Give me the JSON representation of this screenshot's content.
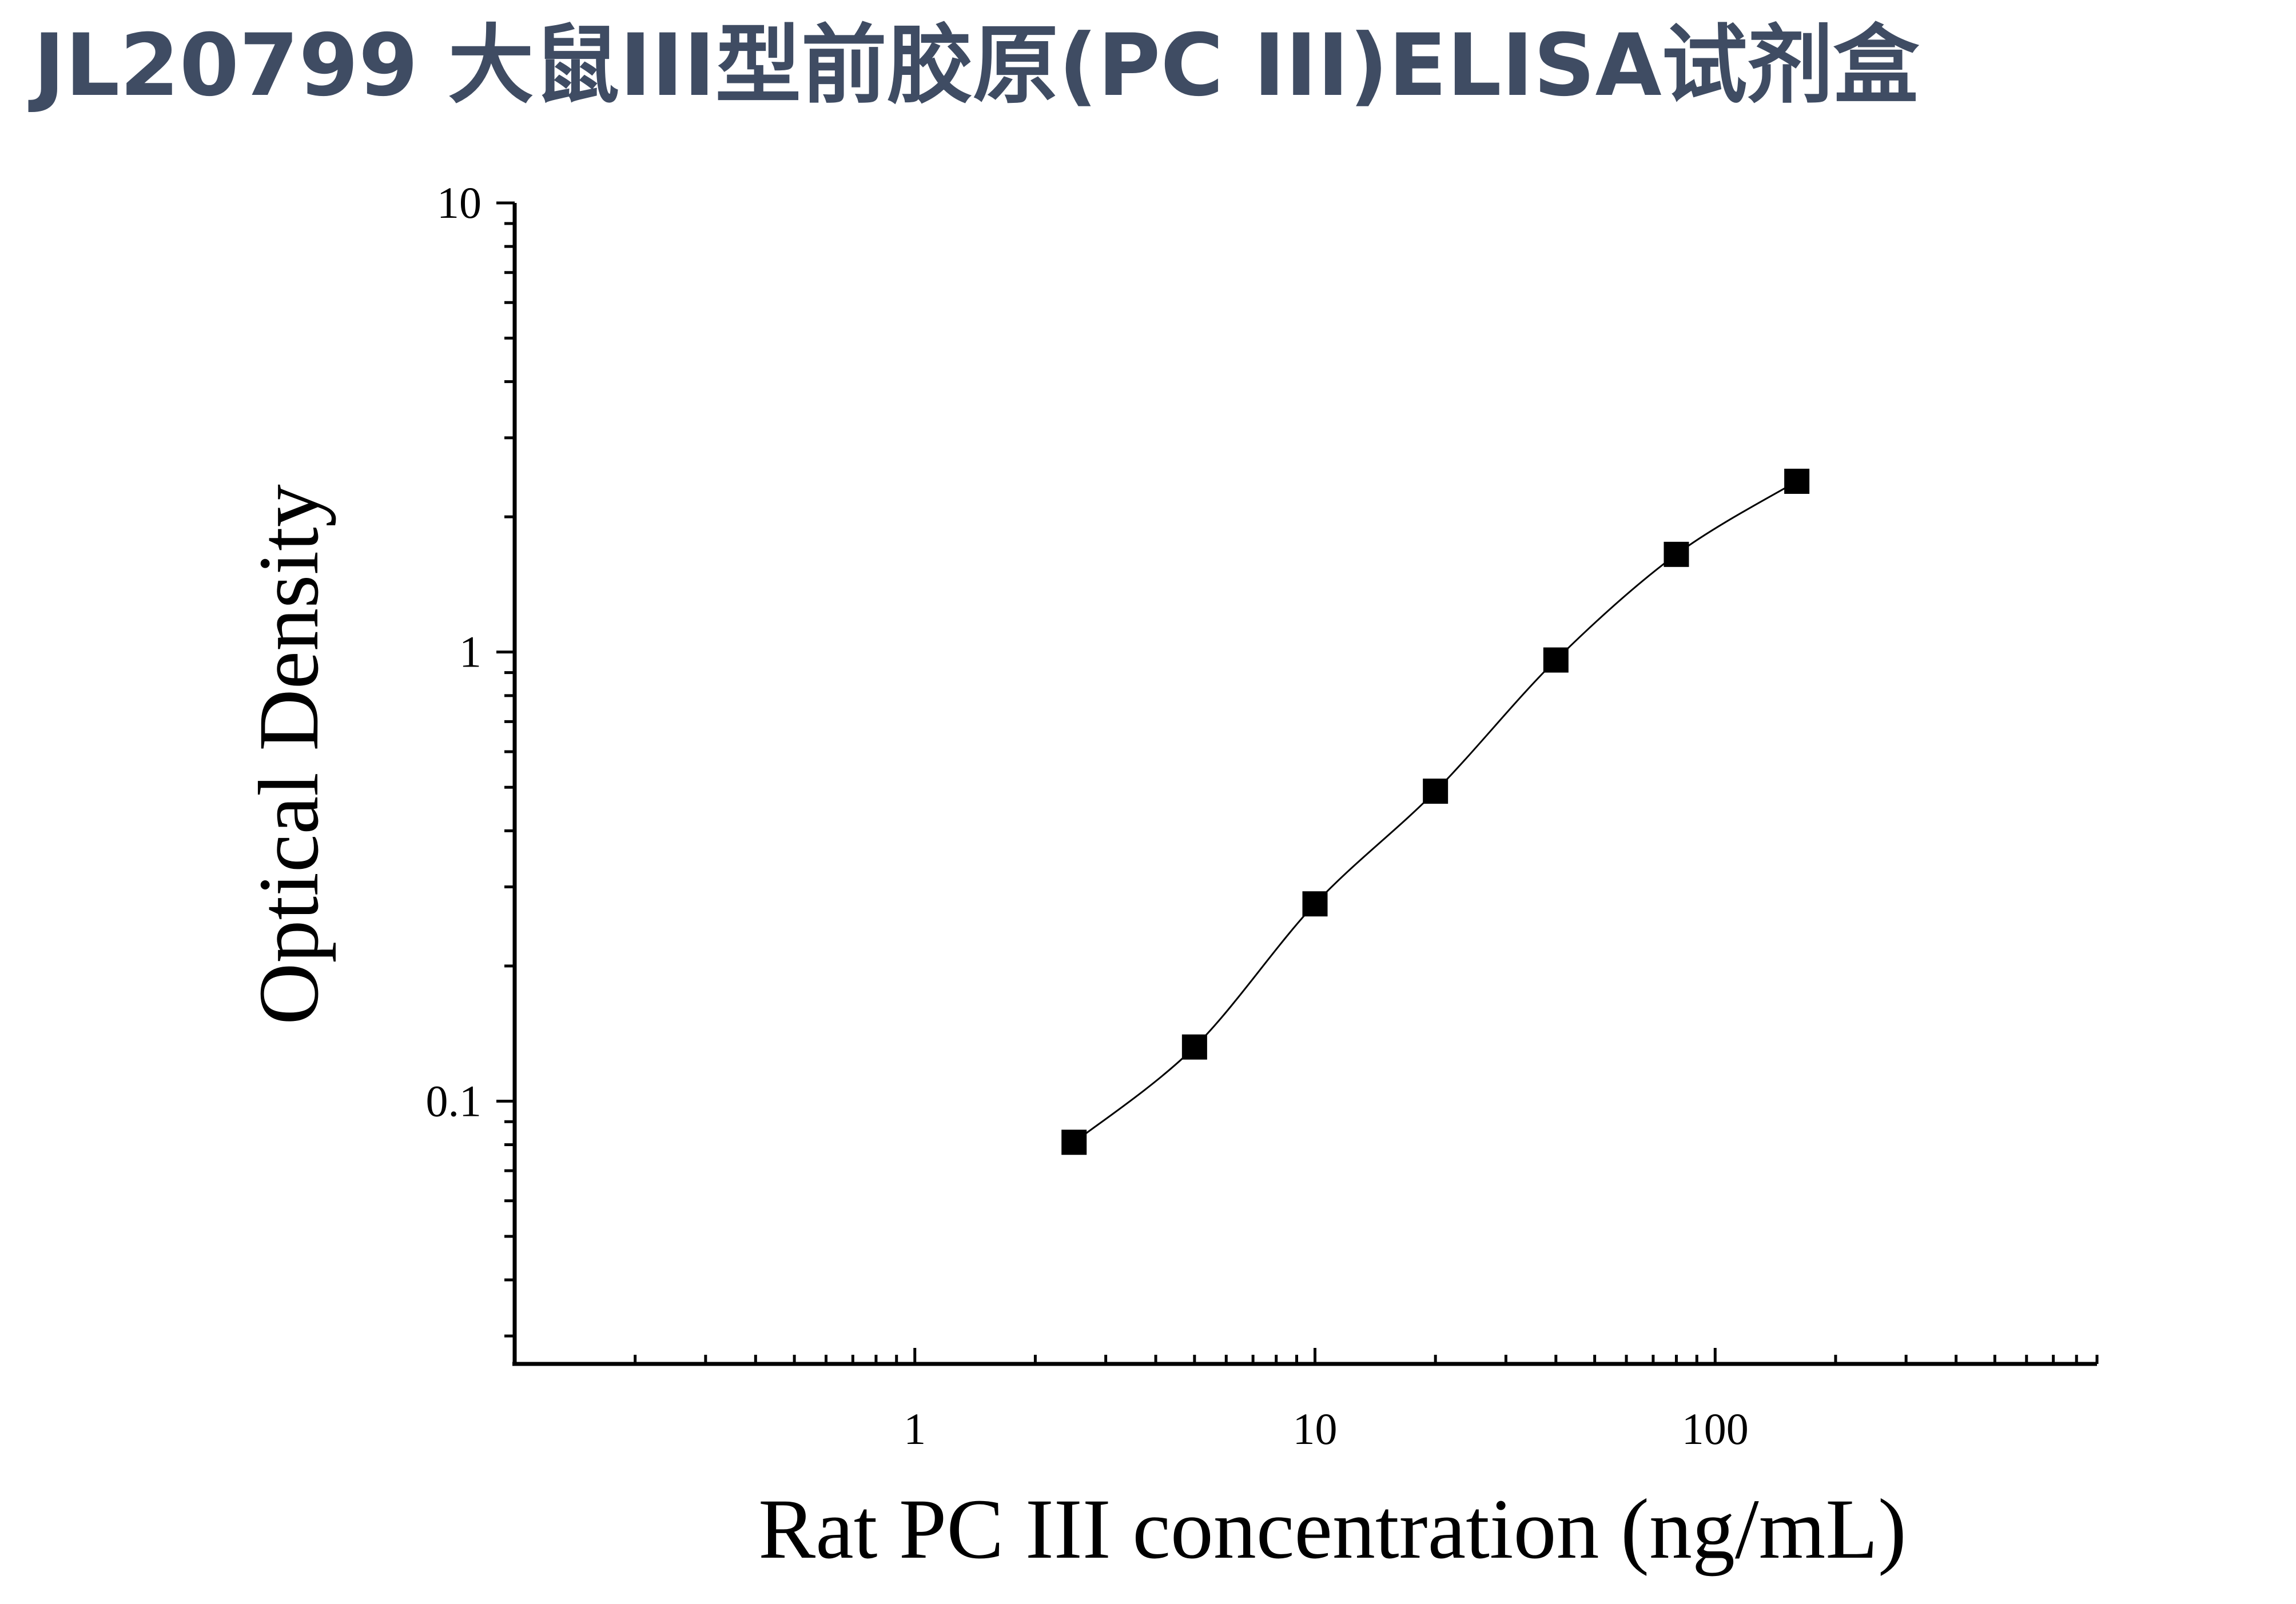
{
  "title": "JL20799 大鼠III型前胶原(PC III)ELISA试剂盒",
  "chart_data": {
    "type": "scatter",
    "xlabel": "Rat PC III concentration (ng/mL)",
    "ylabel": "Optical Density",
    "x_scale": "log",
    "y_scale": "log",
    "xlim": [
      0.1,
      900
    ],
    "ylim": [
      0.026,
      10
    ],
    "x_ticks": [
      {
        "value": 1,
        "label": "1"
      },
      {
        "value": 10,
        "label": "10"
      },
      {
        "value": 100,
        "label": "100"
      }
    ],
    "y_ticks": [
      {
        "value": 0.1,
        "label": "0.1"
      },
      {
        "value": 1,
        "label": "1"
      },
      {
        "value": 10,
        "label": "10"
      }
    ],
    "grid": false,
    "fit_curve": true,
    "marker": "square",
    "series": [
      {
        "x": [
          2.5,
          5,
          10,
          20,
          40,
          80,
          160
        ],
        "y": [
          0.081,
          0.132,
          0.275,
          0.49,
          0.96,
          1.65,
          2.4
        ]
      }
    ]
  }
}
